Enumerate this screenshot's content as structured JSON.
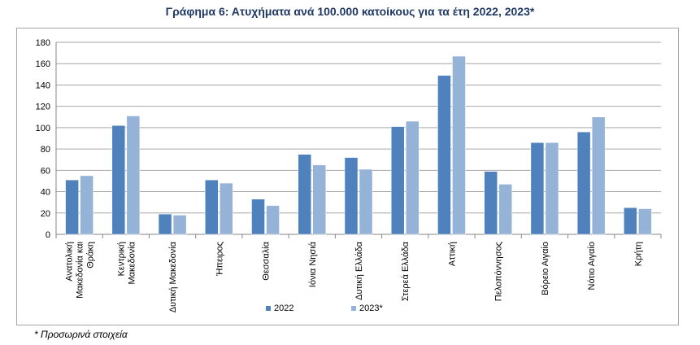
{
  "chart_data": {
    "type": "bar",
    "title": "Γράφημα 6: Ατυχήματα ανά 100.000 κατοίκους για τα έτη 2022, 2023*",
    "categories": [
      [
        "Ανατολική",
        "Μακεδονία και",
        "Θράκη"
      ],
      [
        "Κεντρική",
        "Μακεδονία"
      ],
      [
        "Δυτική Μακεδονία"
      ],
      [
        "Ήπειρος"
      ],
      [
        "Θεσσαλία"
      ],
      [
        "Ιόνια Νησιά"
      ],
      [
        "Δυτική Ελλάδα"
      ],
      [
        "Στερεά Ελλάδα"
      ],
      [
        "Αττική"
      ],
      [
        "Πελοπόννησος"
      ],
      [
        "Βόρειο Αιγαίο"
      ],
      [
        "Νότιο Αιγαίο"
      ],
      [
        "Κρήτη"
      ]
    ],
    "series": [
      {
        "name": "2022",
        "color": "#4f81bd",
        "values": [
          51,
          102,
          19,
          51,
          33,
          75,
          72,
          101,
          149,
          59,
          86,
          96,
          25
        ]
      },
      {
        "name": "2023*",
        "color": "#95b3d7",
        "values": [
          55,
          111,
          18,
          48,
          27,
          65,
          61,
          106,
          167,
          47,
          86,
          110,
          24
        ]
      }
    ],
    "ylim": [
      0,
      180
    ],
    "yticks": [
      0,
      20,
      40,
      60,
      80,
      100,
      120,
      140,
      160,
      180
    ],
    "grid": true,
    "legend": "bottom"
  },
  "footnote": "* Προσωρινά στοιχεία"
}
